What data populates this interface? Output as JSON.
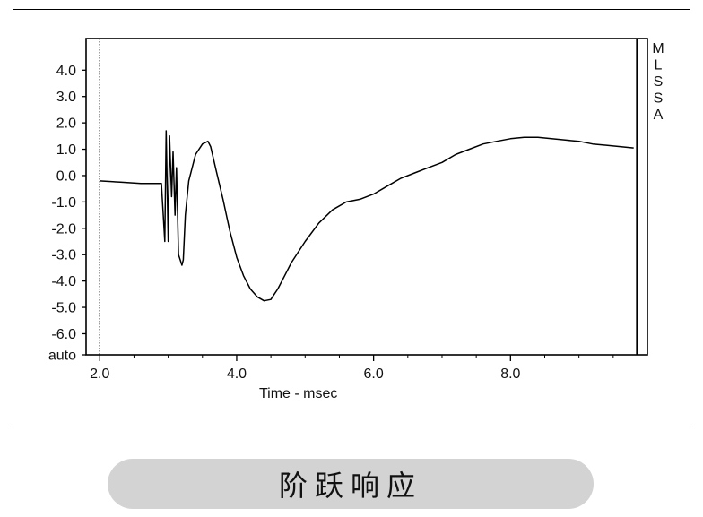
{
  "chart_data": {
    "type": "line",
    "title": "",
    "xlabel": "Time - msec",
    "ylabel": "",
    "xlim": [
      1.8,
      10.0
    ],
    "ylim": [
      -6.8,
      5.2
    ],
    "x_tick_labels": [
      {
        "v": 2.0,
        "label": "2.0"
      },
      {
        "v": 4.0,
        "label": "4.0"
      },
      {
        "v": 6.0,
        "label": "6.0"
      },
      {
        "v": 8.0,
        "label": "8.0"
      }
    ],
    "x_minor_ticks": [
      2.5,
      3.0,
      3.5,
      4.5,
      5.0,
      5.5,
      6.5,
      7.0,
      7.5,
      8.5,
      9.0,
      9.5
    ],
    "y_tick_labels": [
      {
        "v": 4.0,
        "label": "4.0"
      },
      {
        "v": 3.0,
        "label": "3.0"
      },
      {
        "v": 2.0,
        "label": "2.0"
      },
      {
        "v": 1.0,
        "label": "1.0"
      },
      {
        "v": 0.0,
        "label": "0.0"
      },
      {
        "v": -1.0,
        "label": "-1.0"
      },
      {
        "v": -2.0,
        "label": "-2.0"
      },
      {
        "v": -3.0,
        "label": "-3.0"
      },
      {
        "v": -4.0,
        "label": "-4.0"
      },
      {
        "v": -5.0,
        "label": "-5.0"
      },
      {
        "v": -6.0,
        "label": "-6.0"
      },
      {
        "v": -6.8,
        "label": "auto"
      }
    ],
    "markers": [
      {
        "x": 2.0,
        "style": "dotted"
      },
      {
        "x": 9.85,
        "style": "solid"
      }
    ],
    "side_labels": [
      "M",
      "L",
      "S",
      "S",
      "A"
    ],
    "grid": false,
    "series": [
      {
        "color": "#000000",
        "x": [
          2.0,
          2.3,
          2.6,
          2.9,
          2.95,
          2.97,
          3.0,
          3.02,
          3.05,
          3.07,
          3.1,
          3.12,
          3.15,
          3.2,
          3.22,
          3.25,
          3.3,
          3.4,
          3.5,
          3.58,
          3.62,
          3.7,
          3.8,
          3.9,
          4.0,
          4.1,
          4.2,
          4.3,
          4.4,
          4.5,
          4.55,
          4.6,
          4.7,
          4.8,
          5.0,
          5.2,
          5.4,
          5.6,
          5.8,
          6.0,
          6.2,
          6.4,
          6.6,
          6.8,
          7.0,
          7.2,
          7.4,
          7.6,
          7.8,
          8.0,
          8.2,
          8.4,
          8.6,
          8.8,
          9.0,
          9.2,
          9.4,
          9.6,
          9.8
        ],
        "y": [
          -0.2,
          -0.25,
          -0.3,
          -0.3,
          -2.5,
          1.7,
          -2.5,
          1.5,
          -0.8,
          0.9,
          -1.5,
          0.3,
          -3.0,
          -3.4,
          -3.2,
          -1.5,
          -0.2,
          0.8,
          1.2,
          1.3,
          1.1,
          0.2,
          -0.9,
          -2.1,
          -3.1,
          -3.8,
          -4.3,
          -4.6,
          -4.75,
          -4.7,
          -4.5,
          -4.3,
          -3.8,
          -3.3,
          -2.5,
          -1.8,
          -1.3,
          -1.0,
          -0.9,
          -0.7,
          -0.4,
          -0.1,
          0.1,
          0.3,
          0.5,
          0.8,
          1.0,
          1.2,
          1.3,
          1.4,
          1.45,
          1.45,
          1.4,
          1.35,
          1.3,
          1.2,
          1.15,
          1.1,
          1.05
        ]
      }
    ]
  },
  "caption": {
    "text": "阶跃响应",
    "background": "#d3d3d3"
  }
}
